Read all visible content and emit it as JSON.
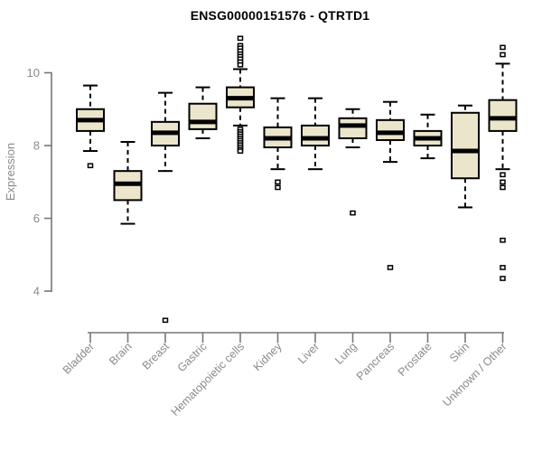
{
  "chart_data": {
    "type": "boxplot",
    "title": "ENSG00000151576 - QTRTD1",
    "ylabel": "Expression",
    "xlabel": "",
    "yticks": [
      10,
      8,
      6,
      4
    ],
    "ylim": [
      3.0,
      11.2
    ],
    "grid": false,
    "legend": null,
    "colors": {
      "box_fill": "#EBE5CC",
      "box_stroke": "#000000",
      "median": "#000000",
      "axis_line": "#777777",
      "axis_text": "#8a8a8a",
      "title_text": "#000000",
      "background": "#ffffff"
    },
    "categories": [
      "Bladder",
      "Brain",
      "Breast",
      "Gastric",
      "Hematopoietic cells",
      "Kidney",
      "Liver",
      "Lung",
      "Pancreas",
      "Prostate",
      "Skin",
      "Unknown / Other"
    ],
    "boxes": [
      {
        "category": "Bladder",
        "whisker_low": 7.85,
        "q1": 8.4,
        "median": 8.7,
        "q3": 9.0,
        "whisker_high": 9.65,
        "outliers": [
          7.45
        ]
      },
      {
        "category": "Brain",
        "whisker_low": 5.85,
        "q1": 6.5,
        "median": 6.95,
        "q3": 7.3,
        "whisker_high": 8.1,
        "outliers": []
      },
      {
        "category": "Breast",
        "whisker_low": 7.3,
        "q1": 8.0,
        "median": 8.35,
        "q3": 8.65,
        "whisker_high": 9.45,
        "outliers": [
          3.2
        ]
      },
      {
        "category": "Gastric",
        "whisker_low": 8.2,
        "q1": 8.45,
        "median": 8.65,
        "q3": 9.15,
        "whisker_high": 9.6,
        "outliers": []
      },
      {
        "category": "Hematopoietic cells",
        "whisker_low": 8.55,
        "q1": 9.05,
        "median": 9.3,
        "q3": 9.6,
        "whisker_high": 10.1,
        "outliers": [
          10.95,
          10.75,
          10.68,
          10.6,
          10.52,
          10.45,
          10.38,
          10.3,
          10.22,
          8.45,
          8.38,
          8.32,
          8.26,
          8.2,
          8.14,
          8.08,
          8.02,
          7.96,
          7.9,
          7.85
        ]
      },
      {
        "category": "Kidney",
        "whisker_low": 7.35,
        "q1": 7.95,
        "median": 8.2,
        "q3": 8.5,
        "whisker_high": 9.3,
        "outliers": [
          7.0,
          6.85
        ]
      },
      {
        "category": "Liver",
        "whisker_low": 7.35,
        "q1": 8.0,
        "median": 8.2,
        "q3": 8.55,
        "whisker_high": 9.3,
        "outliers": []
      },
      {
        "category": "Lung",
        "whisker_low": 7.95,
        "q1": 8.2,
        "median": 8.55,
        "q3": 8.75,
        "whisker_high": 9.0,
        "outliers": [
          6.15
        ]
      },
      {
        "category": "Pancreas",
        "whisker_low": 7.55,
        "q1": 8.15,
        "median": 8.35,
        "q3": 8.7,
        "whisker_high": 9.2,
        "outliers": [
          4.65
        ]
      },
      {
        "category": "Prostate",
        "whisker_low": 7.65,
        "q1": 8.0,
        "median": 8.2,
        "q3": 8.4,
        "whisker_high": 8.85,
        "outliers": []
      },
      {
        "category": "Skin",
        "whisker_low": 6.3,
        "q1": 7.1,
        "median": 7.85,
        "q3": 8.9,
        "whisker_high": 9.1,
        "outliers": []
      },
      {
        "category": "Unknown / Other",
        "whisker_low": 7.35,
        "q1": 8.4,
        "median": 8.75,
        "q3": 9.25,
        "whisker_high": 10.25,
        "outliers": [
          10.7,
          10.5,
          7.2,
          7.0,
          6.85,
          5.4,
          4.65,
          4.35
        ]
      }
    ]
  }
}
